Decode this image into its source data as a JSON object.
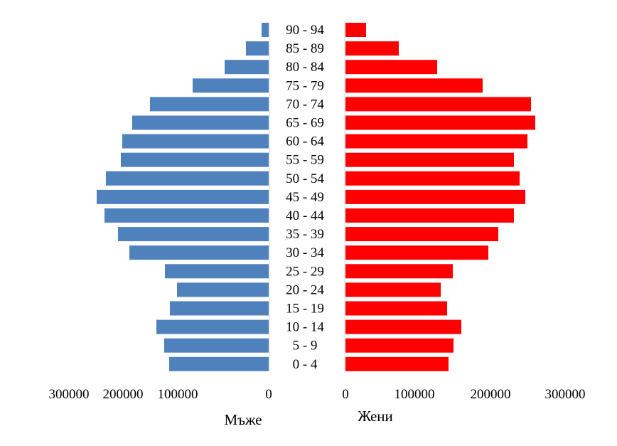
{
  "chart_data": {
    "type": "bar",
    "orientation": "horizontal",
    "subtype": "population-pyramid",
    "categories": [
      "90 - 94",
      "85 - 89",
      "80 - 84",
      "75 - 79",
      "70 - 74",
      "65 - 69",
      "60 - 64",
      "55 - 59",
      "50 - 54",
      "45 - 49",
      "40 - 44",
      "35 - 39",
      "30 - 34",
      "25 - 29",
      "20 - 24",
      "15 - 19",
      "10 - 14",
      "5 - 9",
      "0 - 4"
    ],
    "series": [
      {
        "name": "Мъже",
        "color": "#4f81bd",
        "values": [
          10000,
          32000,
          62000,
          107000,
          167000,
          192000,
          206000,
          208000,
          229000,
          242000,
          231000,
          212000,
          196000,
          146000,
          129000,
          139000,
          158000,
          147000,
          140000
        ]
      },
      {
        "name": "Жени",
        "color": "#ff0000",
        "values": [
          29000,
          75000,
          129000,
          193000,
          261000,
          267000,
          256000,
          237000,
          245000,
          253000,
          237000,
          215000,
          201000,
          151000,
          134000,
          143000,
          163000,
          152000,
          145000
        ]
      }
    ],
    "left_axis": {
      "ticks": [
        "300000",
        "200000",
        "100000",
        "0"
      ],
      "label": "Мъже",
      "range": [
        0,
        300000
      ]
    },
    "right_axis": {
      "ticks": [
        "0",
        "100000",
        "200000",
        "300000"
      ],
      "label": "Жени",
      "range": [
        0,
        300000
      ]
    },
    "grid": false
  }
}
